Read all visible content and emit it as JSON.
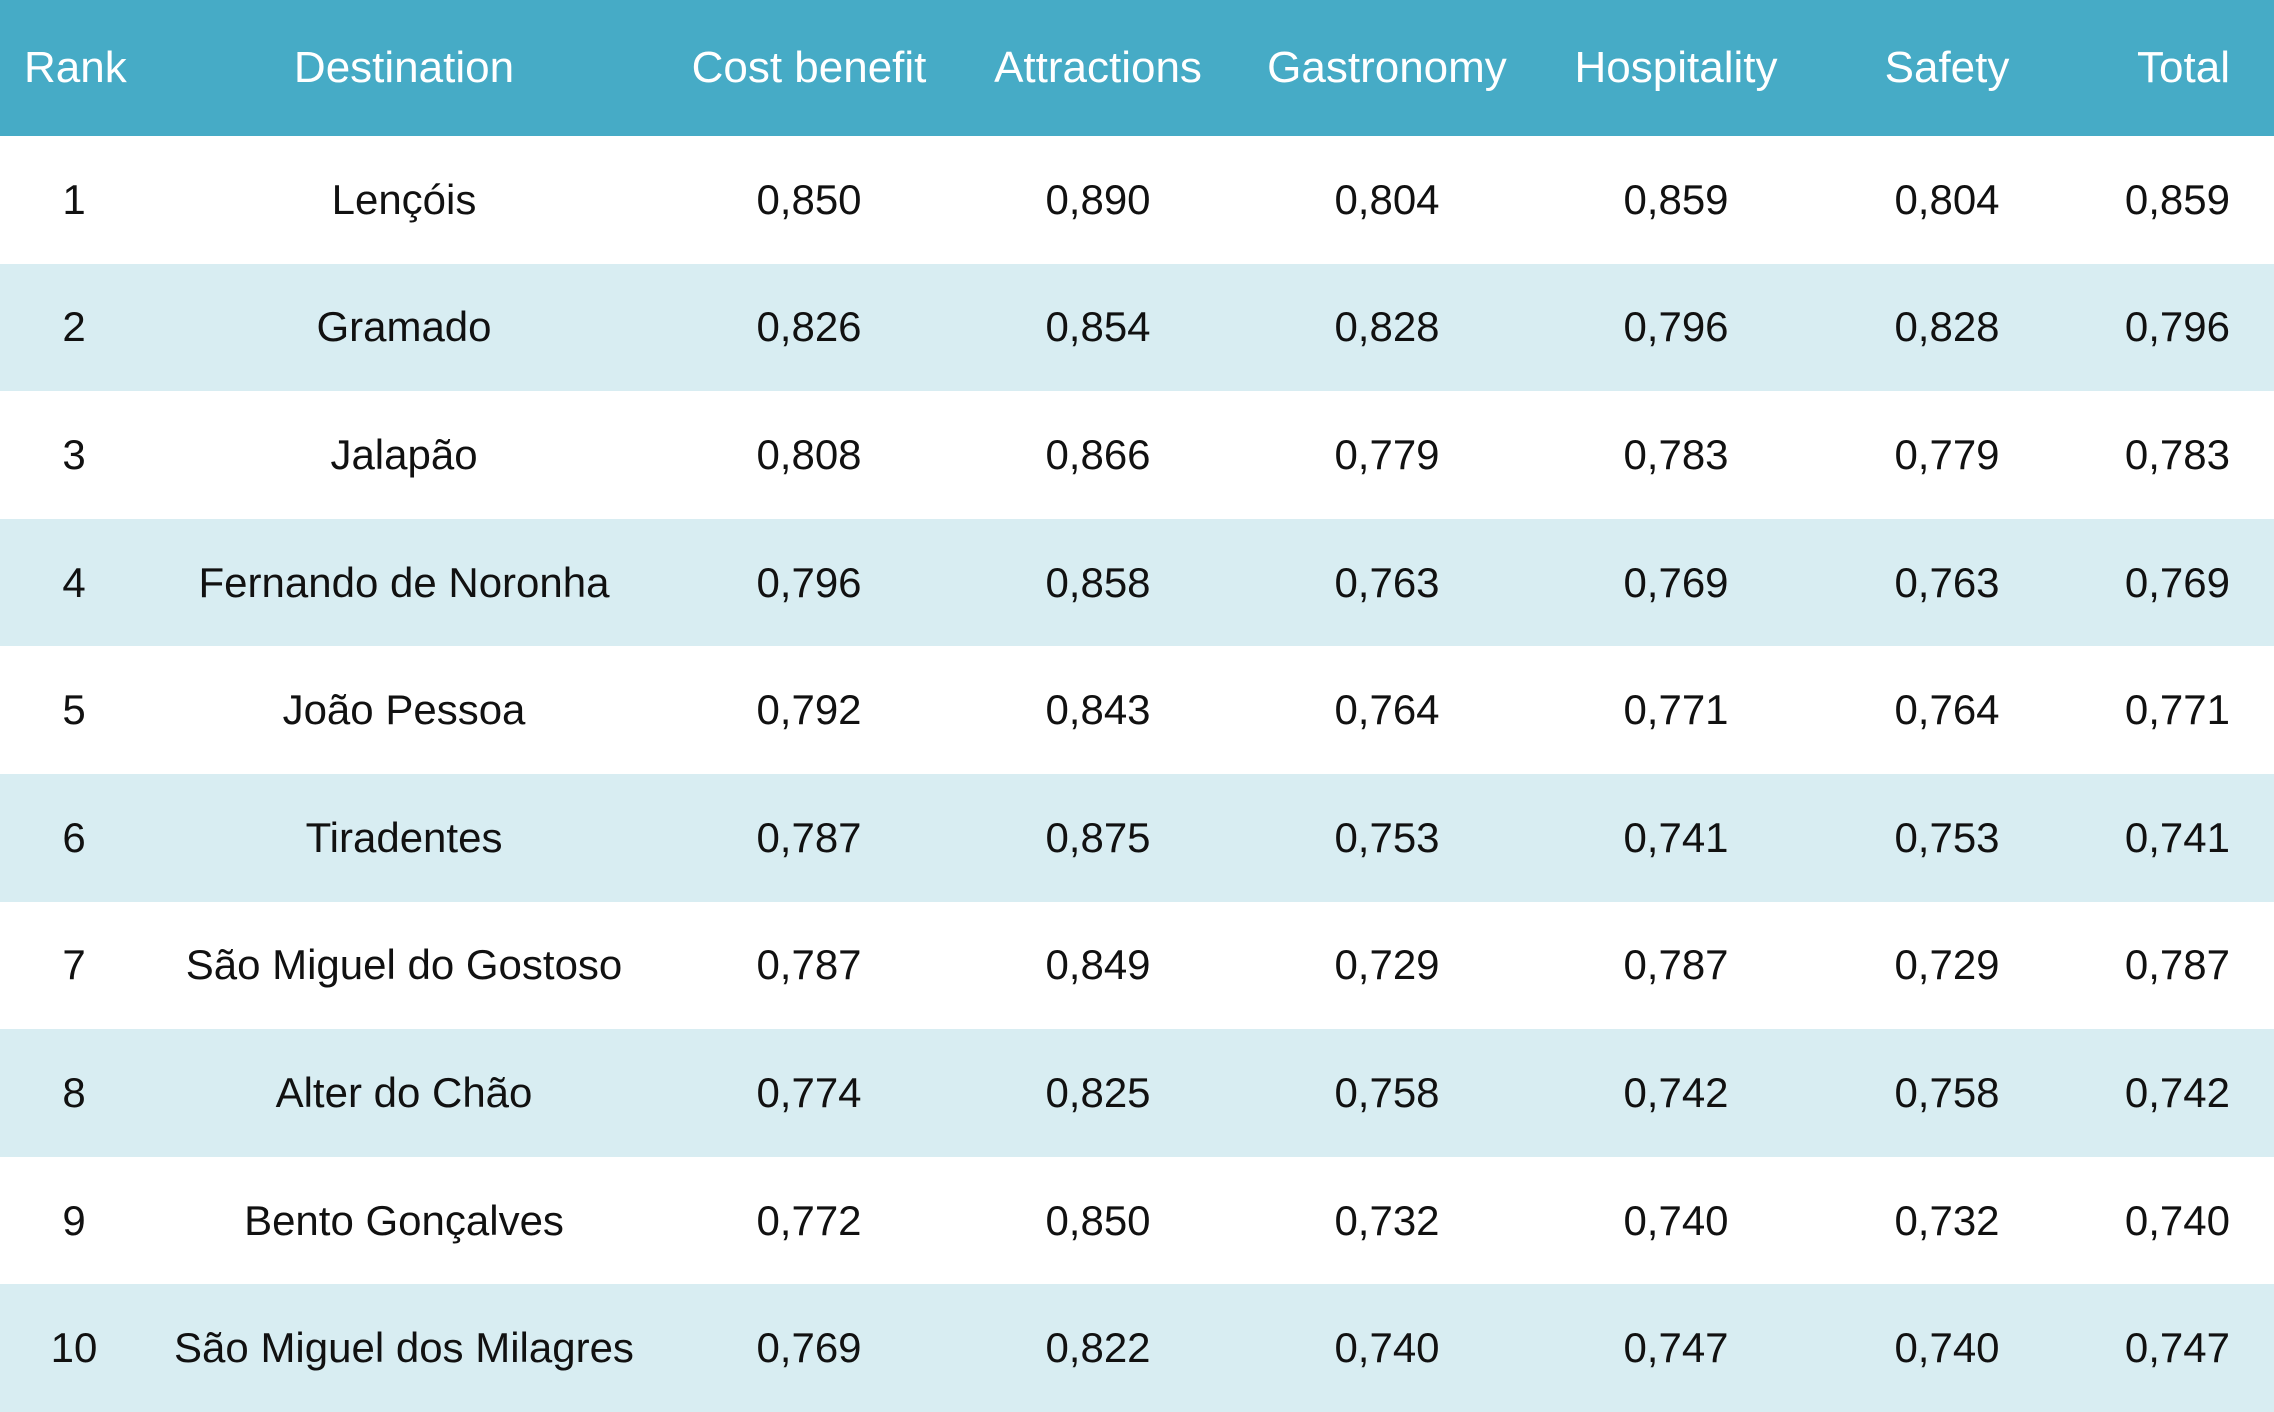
{
  "colors": {
    "header_bg": "#46abc6",
    "row_even": "#ffffff",
    "row_odd": "#d8edf2",
    "header_text": "#ffffff",
    "body_text": "#111111"
  },
  "chart_data": {
    "type": "table",
    "columns": [
      "Rank",
      "Destination",
      "Cost benefit",
      "Attractions",
      "Gastronomy",
      "Hospitality",
      "Safety",
      "Total"
    ],
    "rows": [
      [
        "1",
        "Lençóis",
        "0,850",
        "0,890",
        "0,804",
        "0,859",
        "0,804",
        "0,859"
      ],
      [
        "2",
        "Gramado",
        "0,826",
        "0,854",
        "0,828",
        "0,796",
        "0,828",
        "0,796"
      ],
      [
        "3",
        "Jalapão",
        "0,808",
        "0,866",
        "0,779",
        "0,783",
        "0,779",
        "0,783"
      ],
      [
        "4",
        "Fernando de Noronha",
        "0,796",
        "0,858",
        "0,763",
        "0,769",
        "0,763",
        "0,769"
      ],
      [
        "5",
        "João Pessoa",
        "0,792",
        "0,843",
        "0,764",
        "0,771",
        "0,764",
        "0,771"
      ],
      [
        "6",
        "Tiradentes",
        "0,787",
        "0,875",
        "0,753",
        "0,741",
        "0,753",
        "0,741"
      ],
      [
        "7",
        "São Miguel do Gostoso",
        "0,787",
        "0,849",
        "0,729",
        "0,787",
        "0,729",
        "0,787"
      ],
      [
        "8",
        "Alter do Chão",
        "0,774",
        "0,825",
        "0,758",
        "0,742",
        "0,758",
        "0,742"
      ],
      [
        "9",
        "Bento Gonçalves",
        "0,772",
        "0,850",
        "0,732",
        "0,740",
        "0,732",
        "0,740"
      ],
      [
        "10",
        "São Miguel dos Milagres",
        "0,769",
        "0,822",
        "0,740",
        "0,747",
        "0,740",
        "0,747"
      ]
    ]
  }
}
